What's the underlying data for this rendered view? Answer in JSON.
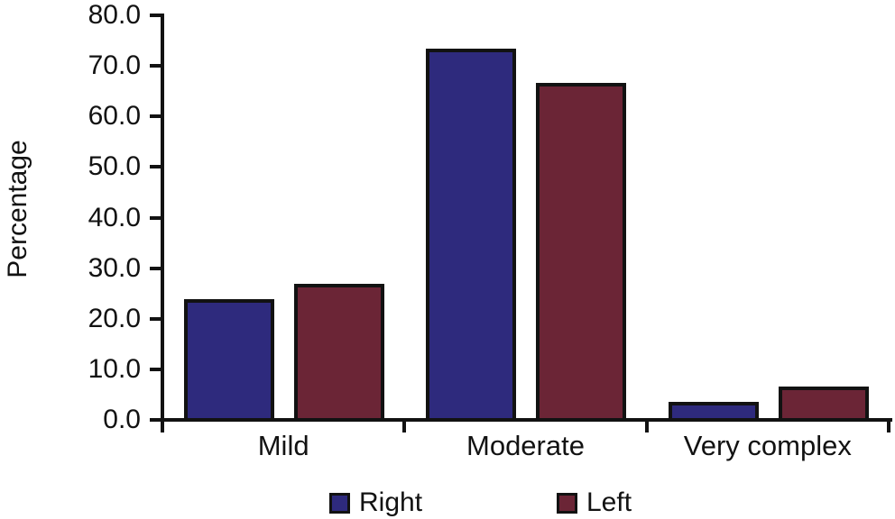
{
  "figure": {
    "background_color": "#ffffff",
    "text_color": "#121212",
    "axis_color": "#121212"
  },
  "chart_data": {
    "type": "bar",
    "title": "",
    "xlabel": "",
    "ylabel": "Percentage",
    "categories": [
      "Mild",
      "Moderate",
      "Very complex"
    ],
    "series": [
      {
        "name": "Right",
        "color": "#2e2a7d",
        "values": [
          23.5,
          73.0,
          3.2
        ]
      },
      {
        "name": "Left",
        "color": "#6b2536",
        "values": [
          26.5,
          66.3,
          6.3
        ]
      }
    ],
    "ylim": [
      0,
      80
    ],
    "ytick_step": 10,
    "ytick_labels": [
      "0.0",
      "10.0",
      "20.0",
      "30.0",
      "40.0",
      "50.0",
      "60.0",
      "70.0",
      "80.0"
    ],
    "grid": false,
    "bar_outline_color": "#121212",
    "legend_position": "bottom",
    "legend_labels": [
      "Right",
      "Left"
    ]
  }
}
